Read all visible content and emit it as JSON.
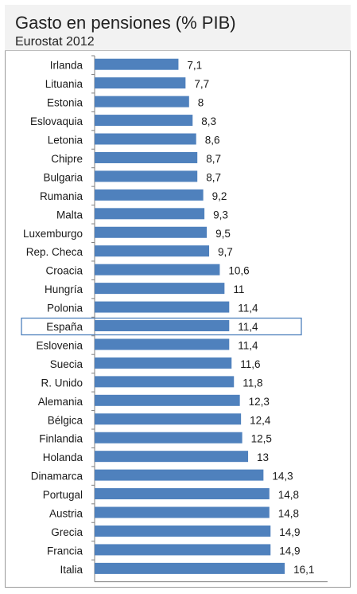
{
  "chart_data": {
    "type": "bar",
    "orientation": "horizontal",
    "title": "Gasto en pensiones (% PIB)",
    "subtitle": "Eurostat 2012",
    "categories": [
      "Irlanda",
      "Lituania",
      "Estonia",
      "Eslovaquia",
      "Letonia",
      "Chipre",
      "Bulgaria",
      "Rumania",
      "Malta",
      "Luxemburgo",
      "Rep. Checa",
      "Croacia",
      "Hungría",
      "Polonia",
      "España",
      "Eslovenia",
      "Suecia",
      "R. Unido",
      "Alemania",
      "Bélgica",
      "Finlandia",
      "Holanda",
      "Dinamarca",
      "Portugal",
      "Austria",
      "Grecia",
      "Francia",
      "Italia"
    ],
    "values": [
      7.1,
      7.7,
      8,
      8.3,
      8.6,
      8.7,
      8.7,
      9.2,
      9.3,
      9.5,
      9.7,
      10.6,
      11,
      11.4,
      11.4,
      11.4,
      11.6,
      11.8,
      12.3,
      12.4,
      12.5,
      13,
      14.3,
      14.8,
      14.8,
      14.9,
      14.9,
      16.1
    ],
    "value_labels": [
      "7,1",
      "7,7",
      "8",
      "8,3",
      "8,6",
      "8,7",
      "8,7",
      "9,2",
      "9,3",
      "9,5",
      "9,7",
      "10,6",
      "11",
      "11,4",
      "11,4",
      "11,4",
      "11,6",
      "11,8",
      "12,3",
      "12,4",
      "12,5",
      "13",
      "14,3",
      "14,8",
      "14,8",
      "14,9",
      "14,9",
      "16,1"
    ],
    "highlighted_category": "España",
    "bar_color": "#4f81bd",
    "highlight_border_color": "#4f81bd",
    "grid": false,
    "legend": "none"
  }
}
